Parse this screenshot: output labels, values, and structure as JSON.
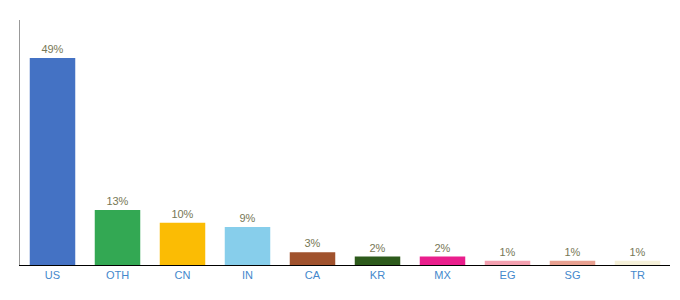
{
  "chart_data": {
    "type": "bar",
    "categories": [
      "US",
      "OTH",
      "CN",
      "IN",
      "CA",
      "KR",
      "MX",
      "EG",
      "SG",
      "TR"
    ],
    "values": [
      49,
      13,
      10,
      9,
      3,
      2,
      2,
      1,
      1,
      1
    ],
    "value_labels": [
      "49%",
      "13%",
      "10%",
      "9%",
      "3%",
      "2%",
      "2%",
      "1%",
      "1%",
      "1%"
    ],
    "colors": [
      "#4472c4",
      "#33a853",
      "#fbbc04",
      "#87ceeb",
      "#a0522d",
      "#2d5a1b",
      "#e91e8c",
      "#f4a0b0",
      "#e8a090",
      "#f5f0d8"
    ],
    "ylim": [
      0,
      58
    ],
    "yticks": [],
    "grid": false,
    "data_labels": true,
    "tick_labels": "x"
  }
}
